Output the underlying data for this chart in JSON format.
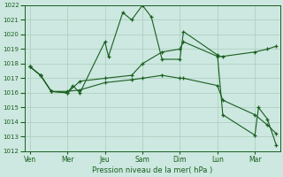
{
  "background_color": "#cce8e0",
  "grid_color": "#aaccbb",
  "line_color": "#1a5e20",
  "xlabel": "Pression niveau de la mer( hPa )",
  "ylim": [
    1012,
    1022
  ],
  "yticks": [
    1012,
    1013,
    1014,
    1015,
    1016,
    1017,
    1018,
    1019,
    1020,
    1021,
    1022
  ],
  "xtick_labels": [
    "Ven",
    "Mer",
    "Jeu",
    "Sam",
    "Dim",
    "Lun",
    "Mar"
  ],
  "xtick_positions": [
    0,
    21,
    42,
    63,
    84,
    105,
    126
  ],
  "xlim": [
    -3,
    140
  ],
  "series1_x": [
    0,
    6,
    12,
    21,
    24,
    28,
    42,
    44,
    52,
    57,
    63,
    68,
    74,
    84,
    86,
    105,
    108,
    126,
    128,
    133,
    138
  ],
  "series1_y": [
    1017.8,
    1017.2,
    1016.1,
    1016.0,
    1016.5,
    1016.0,
    1019.5,
    1018.5,
    1021.5,
    1021.0,
    1022.0,
    1021.2,
    1018.3,
    1018.3,
    1020.2,
    1018.6,
    1014.5,
    1013.1,
    1015.0,
    1014.2,
    1012.4
  ],
  "series2_x": [
    0,
    6,
    12,
    21,
    28,
    42,
    57,
    63,
    74,
    84,
    86,
    105,
    108,
    126,
    133,
    138
  ],
  "series2_y": [
    1017.8,
    1017.2,
    1016.1,
    1016.0,
    1016.8,
    1017.0,
    1017.2,
    1018.0,
    1018.8,
    1019.0,
    1019.5,
    1018.5,
    1018.5,
    1018.8,
    1019.0,
    1019.2
  ],
  "series3_x": [
    0,
    6,
    12,
    21,
    28,
    42,
    57,
    63,
    74,
    84,
    86,
    105,
    108,
    126,
    133,
    138
  ],
  "series3_y": [
    1017.8,
    1017.2,
    1016.1,
    1016.1,
    1016.2,
    1016.7,
    1016.9,
    1017.0,
    1017.2,
    1017.0,
    1017.0,
    1016.5,
    1015.5,
    1014.5,
    1013.8,
    1013.2
  ]
}
